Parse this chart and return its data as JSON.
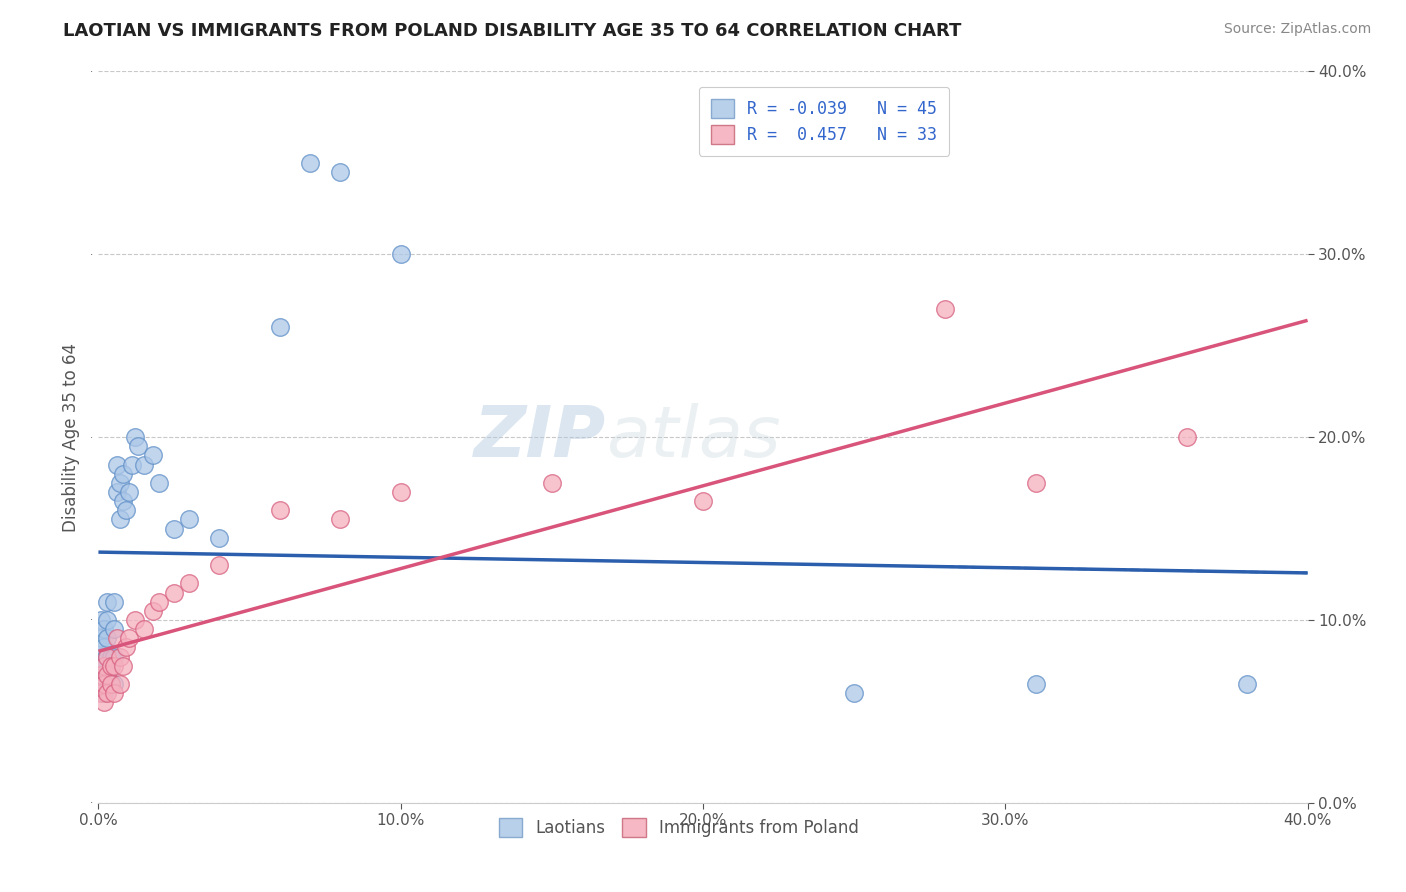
{
  "title": "LAOTIAN VS IMMIGRANTS FROM POLAND DISABILITY AGE 35 TO 64 CORRELATION CHART",
  "source": "Source: ZipAtlas.com",
  "ylabel": "Disability Age 35 to 64",
  "xlim": [
    0.0,
    0.4
  ],
  "ylim": [
    0.0,
    0.4
  ],
  "legend1_r": "-0.039",
  "legend1_n": "45",
  "legend2_r": "0.457",
  "legend2_n": "33",
  "legend1_facecolor": "#b8d0ea",
  "legend2_facecolor": "#f5b8c4",
  "line1_color": "#2b5fad",
  "line2_color": "#d9547a",
  "dot1_facecolor": "#adc8e8",
  "dot1_edgecolor": "#6090c8",
  "dot2_facecolor": "#f5b0be",
  "dot2_edgecolor": "#d86080",
  "watermark_color": "#c8d8e8",
  "title_color": "#222222",
  "source_color": "#888888",
  "axis_label_color": "#555555",
  "legend_text_color": "#3366cc",
  "blue_x": [
    0.001,
    0.001,
    0.001,
    0.001,
    0.002,
    0.002,
    0.002,
    0.002,
    0.002,
    0.003,
    0.003,
    0.003,
    0.003,
    0.003,
    0.004,
    0.004,
    0.004,
    0.005,
    0.005,
    0.005,
    0.005,
    0.006,
    0.006,
    0.007,
    0.007,
    0.008,
    0.008,
    0.009,
    0.01,
    0.011,
    0.012,
    0.013,
    0.015,
    0.018,
    0.02,
    0.025,
    0.03,
    0.04,
    0.06,
    0.07,
    0.08,
    0.1,
    0.25,
    0.31,
    0.38
  ],
  "blue_y": [
    0.07,
    0.08,
    0.09,
    0.1,
    0.06,
    0.065,
    0.075,
    0.085,
    0.095,
    0.07,
    0.08,
    0.09,
    0.1,
    0.11,
    0.065,
    0.075,
    0.08,
    0.065,
    0.08,
    0.095,
    0.11,
    0.17,
    0.185,
    0.155,
    0.175,
    0.165,
    0.18,
    0.16,
    0.17,
    0.185,
    0.2,
    0.195,
    0.185,
    0.19,
    0.175,
    0.15,
    0.155,
    0.145,
    0.26,
    0.35,
    0.345,
    0.3,
    0.06,
    0.065,
    0.065
  ],
  "pink_x": [
    0.001,
    0.001,
    0.002,
    0.002,
    0.002,
    0.003,
    0.003,
    0.003,
    0.004,
    0.004,
    0.005,
    0.005,
    0.006,
    0.007,
    0.007,
    0.008,
    0.009,
    0.01,
    0.012,
    0.015,
    0.018,
    0.02,
    0.025,
    0.03,
    0.04,
    0.06,
    0.08,
    0.1,
    0.15,
    0.2,
    0.28,
    0.31,
    0.36
  ],
  "pink_y": [
    0.06,
    0.07,
    0.055,
    0.065,
    0.075,
    0.06,
    0.07,
    0.08,
    0.065,
    0.075,
    0.06,
    0.075,
    0.09,
    0.065,
    0.08,
    0.075,
    0.085,
    0.09,
    0.1,
    0.095,
    0.105,
    0.11,
    0.115,
    0.12,
    0.13,
    0.16,
    0.155,
    0.17,
    0.175,
    0.165,
    0.27,
    0.175,
    0.2
  ]
}
